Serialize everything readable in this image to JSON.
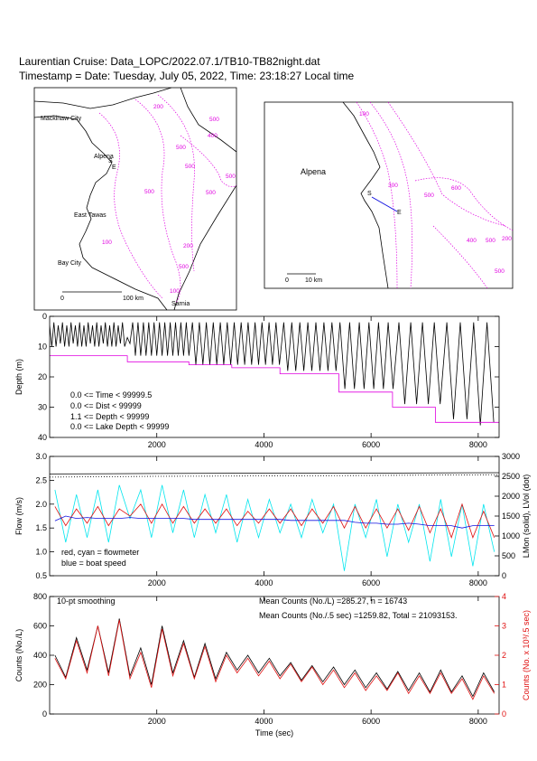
{
  "title": "Laurentian Cruise: Data_LOPC/2022.07.1/TB10-TB82night.dat",
  "timestamp": "Timestamp = Date: Tuesday, July 05, 2022, Time: 23:18:27 Local time",
  "maps": [
    {
      "labels": [
        "Mackinaw City",
        "Alpena",
        "S",
        "E",
        "East Tawas",
        "Bay City",
        "Sarnia",
        "0",
        "100 km"
      ],
      "contours": [
        "200",
        "500",
        "500",
        "400",
        "500",
        "500",
        "500",
        "500",
        "100",
        "200",
        "500",
        "100"
      ]
    },
    {
      "labels": [
        "Alpena",
        "S",
        "E",
        "0",
        "10 km"
      ],
      "contours": [
        "100",
        "300",
        "500",
        "600",
        "400",
        "500",
        "200",
        "500"
      ]
    }
  ],
  "chart_data": [
    {
      "type": "line",
      "ylabel": "Depth (m)",
      "xlim": [
        0,
        8390
      ],
      "xticks": [
        2000,
        4000,
        6000,
        8000
      ],
      "ylim": [
        0,
        40
      ],
      "y_inverted": true,
      "yticks": [
        0,
        10,
        20,
        30,
        40
      ],
      "annotations": [
        "0.0 <= Time < 99999.5",
        "0.0 <= Dist < 99999",
        "1.1 <= Depth < 99999",
        "0.0 <= Lake Depth < 99999"
      ],
      "series": [
        {
          "color": "#000000",
          "x": [
            0,
            40,
            80,
            120,
            160,
            200,
            240,
            280,
            320,
            360,
            400,
            440,
            480,
            520,
            560,
            600,
            640,
            680,
            720,
            760,
            800,
            840,
            880,
            920,
            960,
            1000,
            1040,
            1080,
            1120,
            1160,
            1200,
            1240,
            1280,
            1320,
            1360,
            1400,
            1450,
            1500,
            1550,
            1600,
            1650,
            1700,
            1750,
            1800,
            1850,
            1900,
            1950,
            2000,
            2050,
            2100,
            2150,
            2200,
            2250,
            2300,
            2350,
            2400,
            2450,
            2500,
            2550,
            2600,
            2665,
            2730,
            2795,
            2860,
            2925,
            2990,
            3055,
            3120,
            3185,
            3250,
            3315,
            3380,
            3445,
            3510,
            3575,
            3640,
            3705,
            3770,
            3835,
            3900,
            3965,
            4030,
            4095,
            4160,
            4225,
            4290,
            4370,
            4445,
            4520,
            4595,
            4670,
            4745,
            4820,
            4895,
            4970,
            5045,
            5120,
            5195,
            5270,
            5345,
            5420,
            5510,
            5600,
            5690,
            5780,
            5870,
            5960,
            6050,
            6140,
            6230,
            6320,
            6410,
            6520,
            6630,
            6740,
            6850,
            6960,
            7070,
            7180,
            7290,
            7415,
            7540,
            7665,
            7790,
            7915,
            8040,
            8165,
            8290
          ],
          "values": [
            3,
            10,
            2,
            10,
            3,
            9,
            2,
            10,
            3,
            10,
            2,
            9,
            3,
            10,
            2,
            10,
            3,
            10,
            2,
            9,
            3,
            10,
            2,
            10,
            3,
            9,
            2,
            10,
            3,
            10,
            2,
            10,
            3,
            9,
            2,
            10,
            7,
            9,
            2,
            13,
            2,
            13,
            2,
            13,
            2,
            13,
            2,
            13,
            2,
            13,
            2,
            13,
            2,
            13,
            2,
            13,
            2,
            13,
            2,
            13,
            2,
            16,
            2,
            16,
            2,
            16,
            2,
            16,
            2,
            16,
            2,
            16,
            2,
            16,
            2,
            16,
            2,
            16,
            2,
            16,
            2,
            16,
            2,
            16,
            2,
            16,
            2,
            18,
            2,
            18,
            2,
            18,
            2,
            18,
            2,
            18,
            2,
            18,
            2,
            18,
            2,
            24,
            2,
            24,
            2,
            24,
            2,
            24,
            2,
            24,
            2,
            24,
            2,
            29,
            2,
            29,
            2,
            29,
            2,
            29,
            2,
            34,
            2,
            34,
            2,
            36,
            2,
            35
          ]
        },
        {
          "color": "#e000e0",
          "x": [
            0,
            1450,
            1450,
            2600,
            2600,
            3400,
            3400,
            4300,
            4300,
            5400,
            5400,
            6400,
            6400,
            7200,
            7200,
            8390
          ],
          "values": [
            13,
            13,
            15,
            15,
            16,
            16,
            17,
            17,
            19,
            19,
            25,
            25,
            30,
            30,
            35,
            35
          ]
        }
      ]
    },
    {
      "type": "line",
      "ylabel": "Flow (m/s)",
      "y2label": "LMon (solid), LVol (dot)",
      "xlim": [
        0,
        8390
      ],
      "xticks": [
        2000,
        4000,
        6000,
        8000
      ],
      "ylim": [
        0.5,
        3.0
      ],
      "yticks": [
        0.5,
        {
          "value": 1,
          "label": "1.0"
        },
        1.5,
        {
          "value": 2,
          "label": "2.0"
        },
        2.5,
        {
          "value": 3,
          "label": "3.0"
        }
      ],
      "y2lim": [
        0,
        3000
      ],
      "y2ticks": [
        0,
        500,
        1000,
        1500,
        2000,
        2500,
        3000
      ],
      "annotations": [
        "red, cyan = flowmeter",
        "blue = boat speed"
      ],
      "x": [
        100,
        300,
        500,
        700,
        900,
        1100,
        1300,
        1500,
        1700,
        1900,
        2100,
        2300,
        2500,
        2700,
        2900,
        3100,
        3300,
        3500,
        3700,
        3900,
        4100,
        4300,
        4500,
        4700,
        4900,
        5100,
        5300,
        5500,
        5700,
        5900,
        6100,
        6300,
        6500,
        6700,
        6900,
        7100,
        7300,
        7500,
        7700,
        7900,
        8100,
        8300
      ],
      "series": [
        {
          "color": "#00e5ee",
          "values": [
            2.3,
            1.2,
            2.2,
            1.3,
            2.3,
            1.2,
            2.4,
            1.7,
            2.3,
            1.3,
            2.4,
            1.4,
            2.3,
            1.3,
            2.2,
            1.4,
            2.2,
            1.2,
            2.1,
            1.3,
            2.1,
            1.4,
            2.0,
            1.3,
            2.1,
            1.4,
            2.0,
            0.6,
            2.0,
            1.3,
            2.1,
            0.9,
            2.0,
            1.2,
            2.0,
            0.8,
            2.1,
            0.9,
            2.0,
            0.7,
            2.0,
            1.0
          ]
        },
        {
          "color": "#e01010",
          "values": [
            1.95,
            1.55,
            1.9,
            1.6,
            1.95,
            1.55,
            1.9,
            1.75,
            2.0,
            1.6,
            2.0,
            1.6,
            1.95,
            1.6,
            1.9,
            1.6,
            1.9,
            1.55,
            1.85,
            1.6,
            1.9,
            1.6,
            1.9,
            1.55,
            1.9,
            1.6,
            1.95,
            1.5,
            1.95,
            1.5,
            1.9,
            1.5,
            1.9,
            1.45,
            1.95,
            1.4,
            1.9,
            1.3,
            2.0,
            1.3,
            1.85,
            1.3
          ]
        },
        {
          "color": "#1010e0",
          "values": [
            1.65,
            1.75,
            1.7,
            1.72,
            1.7,
            1.7,
            1.7,
            1.72,
            1.7,
            1.7,
            1.7,
            1.7,
            1.7,
            1.68,
            1.68,
            1.68,
            1.68,
            1.68,
            1.68,
            1.68,
            1.68,
            1.68,
            1.66,
            1.66,
            1.66,
            1.66,
            1.66,
            1.66,
            1.62,
            1.6,
            1.6,
            1.58,
            1.58,
            1.6,
            1.58,
            1.55,
            1.55,
            1.55,
            1.5,
            1.55,
            1.55,
            1.55
          ]
        },
        {
          "color": "#000000",
          "axis": "y2",
          "x": [
            0,
            2000,
            4000,
            6000,
            8390
          ],
          "values": [
            2560,
            2570,
            2580,
            2580,
            2590
          ]
        },
        {
          "color": "#000000",
          "axis": "y2",
          "dash": true,
          "x": [
            0,
            2000,
            4000,
            6000,
            8390
          ],
          "values": [
            2480,
            2500,
            2510,
            2520,
            2540
          ]
        }
      ]
    },
    {
      "type": "line",
      "ylabel": "Counts (No./L)",
      "y2label": "Counts (No. x 10³/.5 sec)",
      "y2color": "#e01010",
      "xlabel": "Time (sec)",
      "xlim": [
        0,
        8390
      ],
      "xticks": [
        2000,
        4000,
        6000,
        8000
      ],
      "ylim": [
        0,
        800
      ],
      "yticks": [
        0,
        200,
        400,
        600,
        800
      ],
      "y2lim": [
        0,
        4
      ],
      "y2ticks": [
        0,
        1,
        2,
        3,
        4
      ],
      "annotations": [
        "10-pt smoothing",
        "Mean Counts (No./L) =285.27, n = 16743",
        "Mean Counts (No./.5 sec) =1259.82, Total = 21093153."
      ],
      "x": [
        100,
        300,
        500,
        700,
        900,
        1100,
        1300,
        1500,
        1700,
        1900,
        2100,
        2300,
        2500,
        2700,
        2900,
        3100,
        3300,
        3500,
        3700,
        3900,
        4100,
        4300,
        4500,
        4700,
        4900,
        5100,
        5300,
        5500,
        5700,
        5900,
        6100,
        6300,
        6500,
        6700,
        6900,
        7100,
        7300,
        7500,
        7700,
        7900,
        8100,
        8300
      ],
      "series": [
        {
          "color": "#000000",
          "values": [
            400,
            250,
            520,
            300,
            600,
            280,
            650,
            260,
            450,
            200,
            600,
            280,
            500,
            250,
            480,
            240,
            420,
            300,
            400,
            280,
            380,
            260,
            350,
            230,
            330,
            220,
            320,
            200,
            300,
            180,
            280,
            170,
            290,
            160,
            280,
            150,
            300,
            150,
            260,
            120,
            280,
            150
          ]
        },
        {
          "color": "#e01010",
          "axis": "y2",
          "values": [
            1.9,
            1.2,
            2.5,
            1.4,
            3.0,
            1.3,
            3.2,
            1.2,
            2.1,
            0.9,
            2.9,
            1.3,
            2.4,
            1.2,
            2.3,
            1.1,
            2.0,
            1.4,
            1.9,
            1.3,
            1.8,
            1.2,
            1.7,
            1.1,
            1.6,
            1.0,
            1.5,
            0.9,
            1.4,
            0.8,
            1.3,
            0.8,
            1.4,
            0.7,
            1.3,
            0.7,
            1.4,
            0.7,
            1.2,
            0.5,
            1.3,
            0.7
          ]
        }
      ]
    }
  ]
}
